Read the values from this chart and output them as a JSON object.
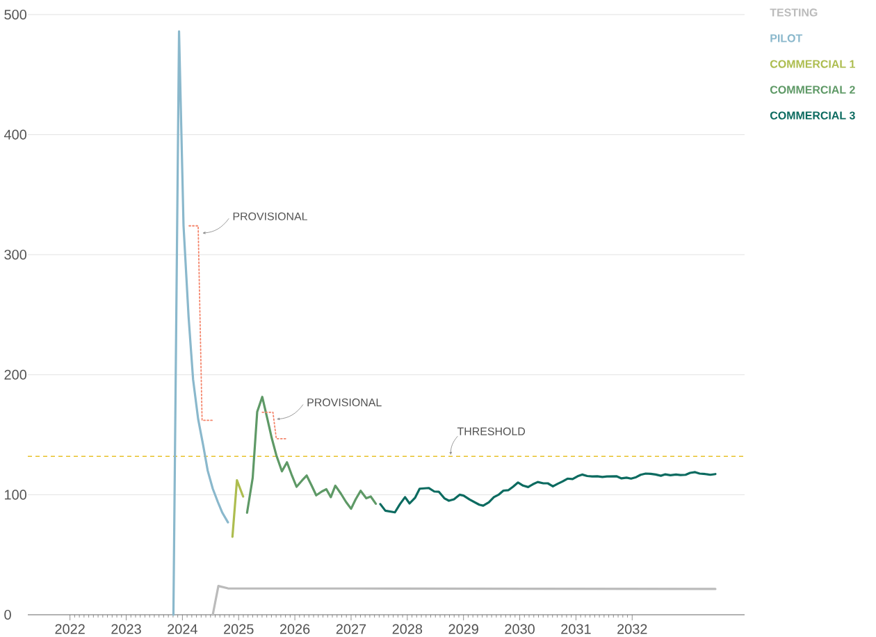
{
  "chart_data": {
    "type": "line",
    "xlim": [
      2021.25,
      2034
    ],
    "xticks": [
      2022,
      2023,
      2024,
      2025,
      2026,
      2027,
      2028,
      2029,
      2030,
      2031,
      2032
    ],
    "ylim": [
      0,
      500
    ],
    "yticks": [
      0,
      100,
      200,
      300,
      400,
      500
    ],
    "grid": "y",
    "legend": "top right",
    "series": [
      {
        "name": "TESTING",
        "color": "#bbbbbb",
        "x": [
          2024.54,
          2024.64,
          2024.81,
          2028.0,
          2033.48
        ],
        "values": [
          0,
          24,
          22,
          21.8,
          21.5
        ]
      },
      {
        "name": "PILOT",
        "color": "#8ab8cc",
        "x": [
          2023.84,
          2023.94,
          2024.02,
          2024.11,
          2024.19,
          2024.28,
          2024.37,
          2024.45,
          2024.54,
          2024.63,
          2024.71,
          2024.81
        ],
        "values": [
          0,
          486,
          324,
          248,
          196,
          163,
          141,
          120,
          105,
          94,
          85,
          77
        ]
      },
      {
        "name": "COMMERCIAL 1",
        "color": "#adbd4f",
        "x": [
          2024.89,
          2024.97,
          2025.08
        ],
        "values": [
          65,
          112,
          98.5
        ]
      },
      {
        "name": "COMMERCIAL 2",
        "color": "#5e9966",
        "x": [
          2025.15,
          2025.25,
          2025.33,
          2025.42,
          2025.51,
          2025.59,
          2025.67,
          2025.77,
          2025.86,
          2025.94,
          2026.03,
          2026.13,
          2026.21,
          2026.3,
          2026.38,
          2026.48,
          2026.56,
          2026.64,
          2026.72,
          2026.82,
          2026.91,
          2027.0,
          2027.08,
          2027.17,
          2027.27,
          2027.35,
          2027.44
        ],
        "values": [
          85,
          114,
          169,
          181.5,
          163.5,
          147,
          133,
          119.5,
          127,
          117,
          106.6,
          112,
          116,
          107.5,
          99.5,
          102.7,
          104.6,
          98,
          107.5,
          100.8,
          94,
          88.3,
          96,
          103.3,
          97,
          98.5,
          92.5
        ]
      },
      {
        "name": "COMMERCIAL 3",
        "color": "#0c6b60",
        "x": [
          2027.52,
          2027.61,
          2027.78,
          2027.87,
          2027.96,
          2028.04,
          2028.14,
          2028.22,
          2028.38,
          2028.48,
          2028.56,
          2028.66,
          2028.74,
          2028.83,
          2028.93,
          2029.0,
          2029.11,
          2029.28,
          2029.35,
          2029.45,
          2029.54,
          2029.63,
          2029.71,
          2029.8,
          2029.88,
          2029.97,
          2030.06,
          2030.15,
          2030.23,
          2030.32,
          2030.42,
          2030.5,
          2030.59,
          2030.67,
          2030.76,
          2030.85,
          2030.94,
          2031.03,
          2031.11,
          2031.2,
          2031.29,
          2031.38,
          2031.47,
          2031.55,
          2031.72,
          2031.81,
          2031.9,
          2031.98,
          2032.07,
          2032.15,
          2032.24,
          2032.33,
          2032.42,
          2032.51,
          2032.59,
          2032.68,
          2032.78,
          2032.86,
          2032.95,
          2033.03,
          2033.12,
          2033.2,
          2033.3,
          2033.39,
          2033.48
        ],
        "values": [
          92.2,
          86.7,
          85.3,
          92.2,
          98,
          92.7,
          97.6,
          105,
          105.6,
          102.7,
          102.5,
          97,
          95,
          96.2,
          100,
          99.3,
          96,
          91.7,
          90.9,
          93.7,
          98,
          100.2,
          103.4,
          103.8,
          106.6,
          110.2,
          107.6,
          106.4,
          108.6,
          110.6,
          109.5,
          109.5,
          107,
          109,
          111,
          113.4,
          113,
          115.4,
          116.8,
          115.6,
          115.2,
          115.4,
          114.8,
          115.2,
          115.4,
          113.6,
          114.2,
          113.4,
          114.6,
          116.6,
          117.6,
          117.4,
          116.8,
          115.8,
          117,
          116.2,
          116.8,
          116.4,
          116.6,
          118.2,
          118.8,
          117.6,
          117.2,
          116.6,
          117.2
        ]
      },
      {
        "color": "#f4846a",
        "line_style": "dotted",
        "x": [
          2024.12,
          2024.28,
          2024.35,
          2024.54
        ],
        "values": [
          324,
          324,
          162,
          162
        ]
      },
      {
        "color": "#f4846a",
        "line_style": "dotted",
        "x": [
          2025.42,
          2025.61,
          2025.67,
          2025.86
        ],
        "values": [
          168.7,
          168.7,
          146.7,
          146.7
        ]
      }
    ],
    "ref_lines": [
      {
        "axis": "y",
        "value": 132,
        "label": "THRESHOLD",
        "color": "#e8c22a",
        "line_style": "dashed"
      }
    ],
    "annotations": [
      {
        "text": "PROVISIONAL",
        "x": 2024.32,
        "y": 318
      },
      {
        "text": "PROVISIONAL",
        "x": 2025.64,
        "y": 163
      }
    ]
  }
}
